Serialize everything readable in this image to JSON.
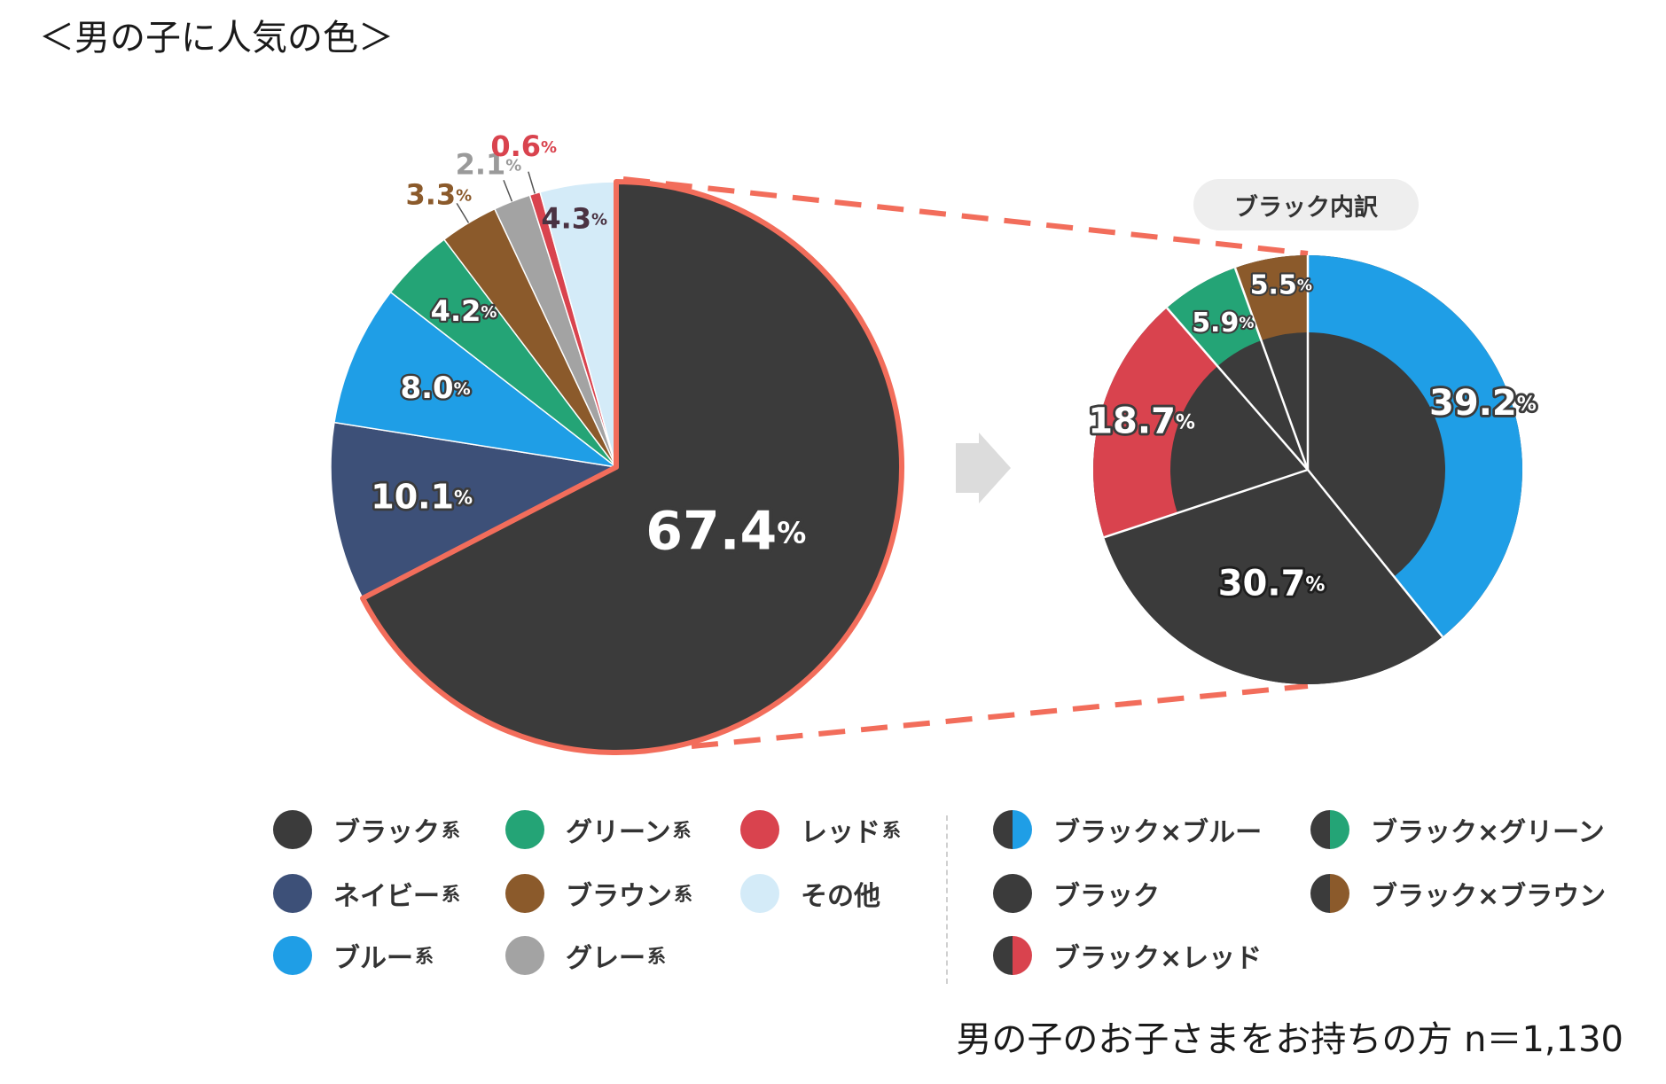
{
  "title": "＜男の子に人気の色＞",
  "sample_note": "男の子のお子さまをお持ちの方 n＝1,130",
  "breakdown_title": "ブラック内訳",
  "chart_data": [
    {
      "type": "pie",
      "title": "",
      "percent_symbol": "%",
      "slices": [
        {
          "label": "ブラック系",
          "value": 67.4,
          "display": "67.4",
          "color": "#3b3b3b",
          "label_color": "#ffffff"
        },
        {
          "label": "ネイビー系",
          "value": 10.1,
          "display": "10.1",
          "color": "#3d5078",
          "label_color": "#ffffff"
        },
        {
          "label": "ブルー系",
          "value": 8.0,
          "display": "8.0",
          "color": "#1f9ee6",
          "label_color": "#ffffff"
        },
        {
          "label": "グリーン系",
          "value": 4.2,
          "display": "4.2",
          "color": "#24a476",
          "label_color": "#ffffff"
        },
        {
          "label": "ブラウン系",
          "value": 3.3,
          "display": "3.3",
          "color": "#8b5a2b",
          "label_color": "#8b5a2b"
        },
        {
          "label": "グレー系",
          "value": 2.1,
          "display": "2.1",
          "color": "#a3a3a3",
          "label_color": "#9a9a9a"
        },
        {
          "label": "レッド系",
          "value": 0.6,
          "display": "0.6",
          "color": "#d9434e",
          "label_color": "#d9434e"
        },
        {
          "label": "その他",
          "value": 4.3,
          "display": "4.3",
          "color": "#d4ebf8",
          "label_color": "#4a3242"
        }
      ]
    },
    {
      "type": "pie",
      "title": "ブラック内訳",
      "percent_symbol": "%",
      "slices": [
        {
          "label": "ブラック×ブルー",
          "value": 39.2,
          "display": "39.2",
          "color": "#1f9ee6",
          "label_color": "#ffffff"
        },
        {
          "label": "ブラック",
          "value": 30.7,
          "display": "30.7",
          "color": "#3b3b3b",
          "label_color": "#ffffff"
        },
        {
          "label": "ブラック×レッド",
          "value": 18.7,
          "display": "18.7",
          "color": "#d9434e",
          "label_color": "#ffffff"
        },
        {
          "label": "ブラック×グリーン",
          "value": 5.9,
          "display": "5.9",
          "color": "#24a476",
          "label_color": "#ffffff"
        },
        {
          "label": "ブラック×ブラウン",
          "value": 5.5,
          "display": "5.5",
          "color": "#8b5a2b",
          "label_color": "#ffffff"
        }
      ]
    }
  ],
  "legend_left": [
    {
      "label": "ブラック",
      "suffix": "系",
      "color": "#3b3b3b"
    },
    {
      "label": "ネイビー",
      "suffix": "系",
      "color": "#3d5078"
    },
    {
      "label": "ブルー",
      "suffix": "系",
      "color": "#1f9ee6"
    },
    {
      "label": "グリーン",
      "suffix": "系",
      "color": "#24a476"
    },
    {
      "label": "ブラウン",
      "suffix": "系",
      "color": "#8b5a2b"
    },
    {
      "label": "グレー",
      "suffix": "系",
      "color": "#a3a3a3"
    },
    {
      "label": "レッド",
      "suffix": "系",
      "color": "#d9434e"
    },
    {
      "label": "その他",
      "suffix": "",
      "color": "#d4ebf8"
    }
  ],
  "legend_right": [
    {
      "label": "ブラック×ブルー",
      "color": "#1f9ee6"
    },
    {
      "label": "ブラック",
      "color": "#3b3b3b"
    },
    {
      "label": "ブラック×レッド",
      "color": "#d9434e"
    },
    {
      "label": "ブラック×グリーン",
      "color": "#24a476"
    },
    {
      "label": "ブラック×ブラウン",
      "color": "#8b5a2b"
    }
  ],
  "colors": {
    "highlight": "#f26d5b",
    "arrow": "#dcdcdc",
    "dark": "#3b3b3b"
  }
}
